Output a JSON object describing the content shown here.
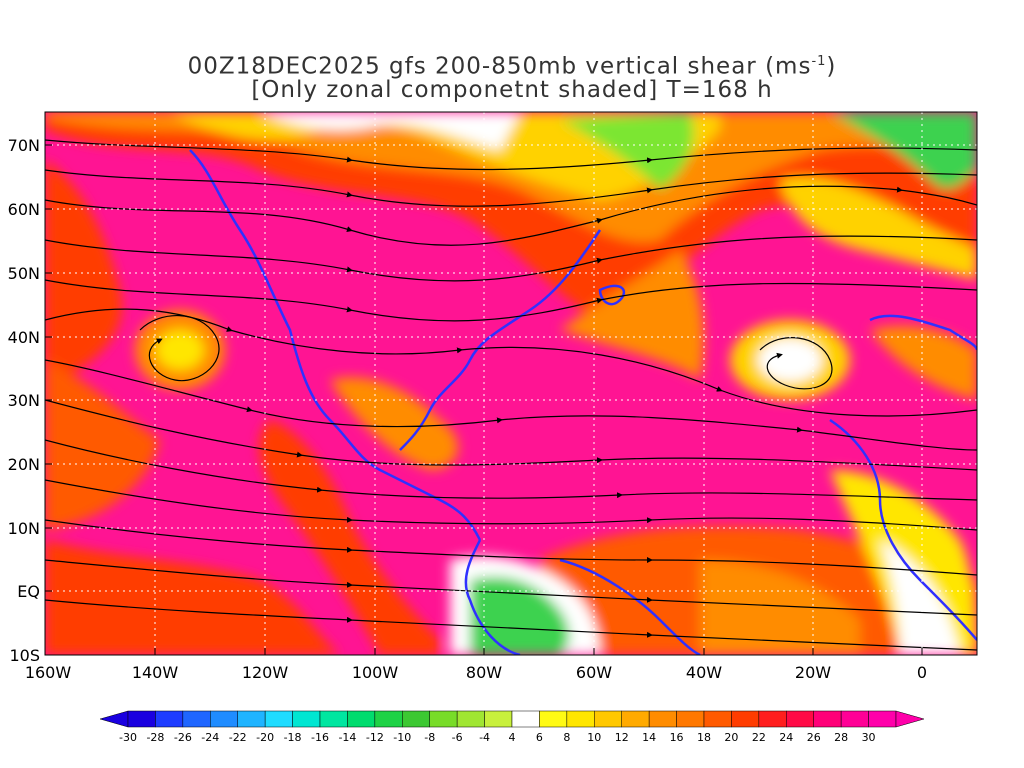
{
  "title": {
    "line1_prefix": "00Z18DEC2025 gfs 200-850mb vertical shear (ms",
    "line1_sup": "-1",
    "line1_suffix": ")",
    "line2": "[Only zonal componetnt shaded] T=168 h"
  },
  "map": {
    "lat_labels": [
      "70N",
      "60N",
      "50N",
      "40N",
      "30N",
      "20N",
      "10N",
      "EQ",
      "10S"
    ],
    "lon_labels": [
      "160W",
      "140W",
      "120W",
      "100W",
      "80W",
      "60W",
      "40W",
      "20W",
      "0"
    ],
    "lat_range": [
      -10,
      75
    ],
    "lon_range": [
      -160,
      10
    ],
    "field": "zonal component of 200-850mb vertical shear",
    "overlay": "streamlines"
  },
  "colorbar": {
    "labels": [
      "-30",
      "-28",
      "-26",
      "-24",
      "-22",
      "-20",
      "-18",
      "-16",
      "-14",
      "-12",
      "-10",
      "-8",
      "-6",
      "-4",
      "4",
      "6",
      "8",
      "10",
      "12",
      "14",
      "16",
      "18",
      "20",
      "22",
      "24",
      "26",
      "28",
      "30"
    ],
    "colors": [
      "#1a00e0",
      "#1e3cff",
      "#1f66ff",
      "#1f8cff",
      "#1fb4ff",
      "#1fdcff",
      "#00e6d2",
      "#00e6a0",
      "#00dc6e",
      "#1ed246",
      "#3cc832",
      "#78dc28",
      "#a0e632",
      "#c8f03c",
      "#ffffff",
      "#fffa14",
      "#ffe600",
      "#ffc800",
      "#ffaa00",
      "#ff8c00",
      "#ff7800",
      "#ff5a00",
      "#ff3c00",
      "#ff1e1e",
      "#ff0a46",
      "#ff0078",
      "#ff0096",
      "#ff00aa"
    ]
  },
  "colors": {
    "coastline": "#3030ff",
    "streamline": "#000000",
    "jet": "#ff1493"
  }
}
